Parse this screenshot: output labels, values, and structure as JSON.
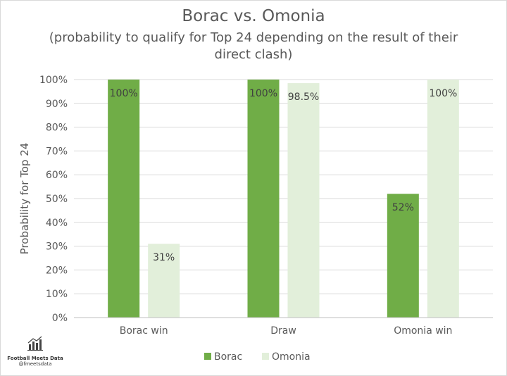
{
  "chart_data": {
    "type": "bar",
    "title": "Borac vs. Omonia",
    "subtitle": "(probability to qualify for Top 24 depending on the result of their direct clash)",
    "ylabel": "Probability for Top 24",
    "xlabel": "",
    "categories": [
      "Borac win",
      "Draw",
      "Omonia win"
    ],
    "ylim": [
      0,
      100
    ],
    "yticks": [
      "0%",
      "10%",
      "20%",
      "30%",
      "40%",
      "50%",
      "60%",
      "70%",
      "80%",
      "90%",
      "100%"
    ],
    "grid": true,
    "legend_position": "bottom",
    "series": [
      {
        "name": "Borac",
        "color": "#70ad47",
        "values": [
          100,
          100,
          52
        ],
        "labels": [
          "100%",
          "100%",
          "52%"
        ]
      },
      {
        "name": "Omonia",
        "color": "#e2efda",
        "values": [
          31,
          98.5,
          100
        ],
        "labels": [
          "31%",
          "98.5%",
          "100%"
        ]
      }
    ]
  },
  "branding": {
    "name": "Football Meets Data",
    "handle": "@fmeetsdata",
    "icon": "chart-logo-icon"
  }
}
